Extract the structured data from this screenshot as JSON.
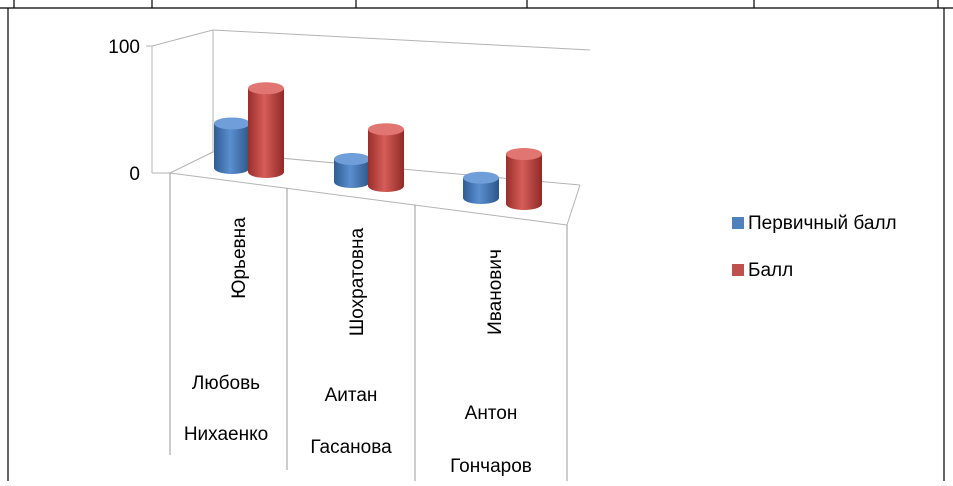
{
  "chart_data": {
    "type": "bar",
    "categories": [
      {
        "first": "Юрьевна",
        "second": "Любовь",
        "third": "Нихаенко"
      },
      {
        "first": "Шохратовна",
        "second": "Аитан",
        "third": "Гасанова"
      },
      {
        "first": "Иванович",
        "second": "Антон",
        "third": "Гончаров"
      }
    ],
    "series": [
      {
        "name": "Первичный балл",
        "values": [
          33,
          17,
          15
        ],
        "color": "#4F81BD"
      },
      {
        "name": "Балл",
        "values": [
          62,
          42,
          37
        ],
        "color": "#C0504D"
      }
    ],
    "y_ticks": [
      "0",
      "100"
    ],
    "ylim": [
      0,
      100
    ],
    "legend_position": "right",
    "grid": false,
    "three_d": true
  }
}
